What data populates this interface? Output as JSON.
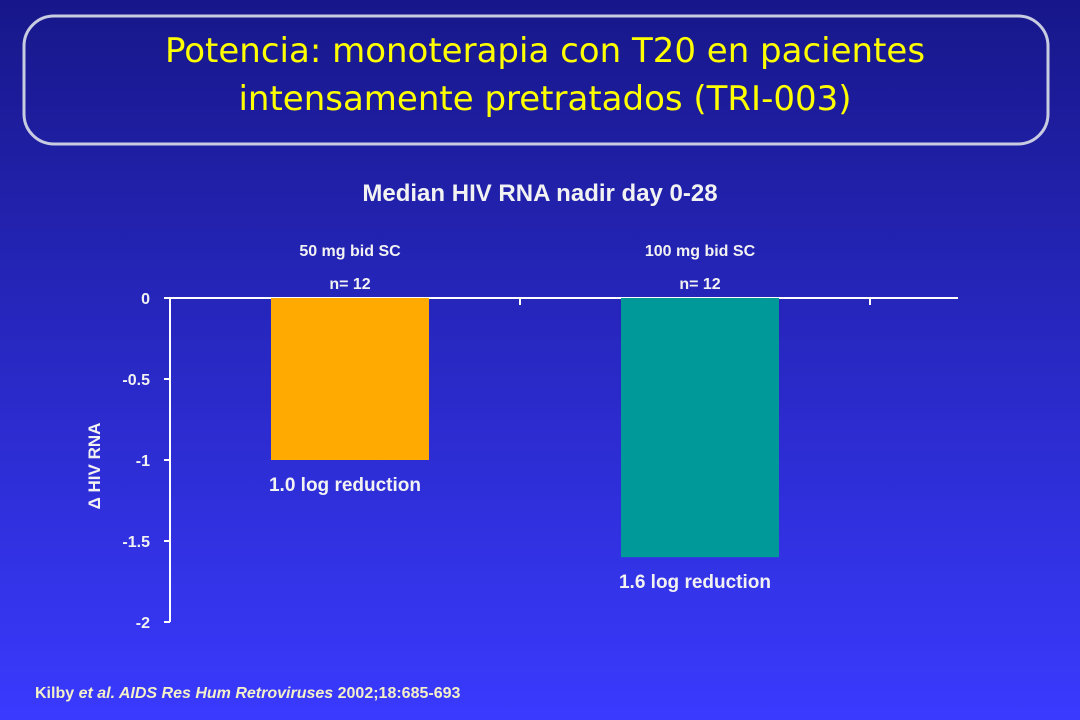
{
  "slide_title": [
    "Potencia:  monoterapia con T20 en pacientes",
    "intensamente pretratados (TRI-003)"
  ],
  "chart_data": {
    "type": "bar",
    "title": "Median HIV RNA nadir day 0-28",
    "categories": [
      "50 mg bid SC",
      "100 mg bid SC"
    ],
    "annotations": [
      "n= 12",
      "n= 12"
    ],
    "series": [
      {
        "name": "50 mg bid SC",
        "color": "#ffaa00",
        "values": [
          -1.0,
          null
        ],
        "value_labels": [
          "1.0 log reduction",
          null
        ]
      },
      {
        "name": "100 mg bid SC",
        "color": "#009999",
        "values": [
          null,
          -1.6
        ],
        "value_labels": [
          null,
          "1.6 log reduction"
        ]
      }
    ],
    "ylabel": "Δ HIV RNA",
    "ylim": [
      -2,
      0
    ],
    "yticks": [
      0,
      -0.5,
      -1,
      -1.5,
      -2
    ],
    "grid": false
  },
  "source": [
    "Kilby ",
    "et al. AIDS Res Hum Retroviruses",
    " 2002;18:685-693"
  ]
}
